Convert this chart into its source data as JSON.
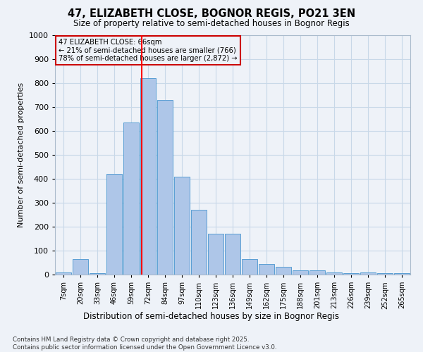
{
  "title": "47, ELIZABETH CLOSE, BOGNOR REGIS, PO21 3EN",
  "subtitle": "Size of property relative to semi-detached houses in Bognor Regis",
  "xlabel": "Distribution of semi-detached houses by size in Bognor Regis",
  "ylabel": "Number of semi-detached properties",
  "bins": [
    "7sqm",
    "20sqm",
    "33sqm",
    "46sqm",
    "59sqm",
    "72sqm",
    "84sqm",
    "97sqm",
    "110sqm",
    "123sqm",
    "136sqm",
    "149sqm",
    "162sqm",
    "175sqm",
    "188sqm",
    "201sqm",
    "213sqm",
    "226sqm",
    "239sqm",
    "252sqm",
    "265sqm"
  ],
  "counts": [
    8,
    65,
    5,
    420,
    635,
    820,
    730,
    410,
    270,
    170,
    170,
    65,
    45,
    33,
    18,
    18,
    10,
    5,
    10,
    5,
    5
  ],
  "bar_color": "#aec6e8",
  "bar_edge_color": "#5a9fd4",
  "grid_color": "#c8d8e8",
  "property_line_x": 4.62,
  "annotation_text": "47 ELIZABETH CLOSE: 66sqm\n← 21% of semi-detached houses are smaller (766)\n78% of semi-detached houses are larger (2,872) →",
  "annotation_box_color": "#cc0000",
  "ylim": [
    0,
    1000
  ],
  "yticks": [
    0,
    100,
    200,
    300,
    400,
    500,
    600,
    700,
    800,
    900,
    1000
  ],
  "footnote": "Contains HM Land Registry data © Crown copyright and database right 2025.\nContains public sector information licensed under the Open Government Licence v3.0.",
  "bg_color": "#eef2f8"
}
